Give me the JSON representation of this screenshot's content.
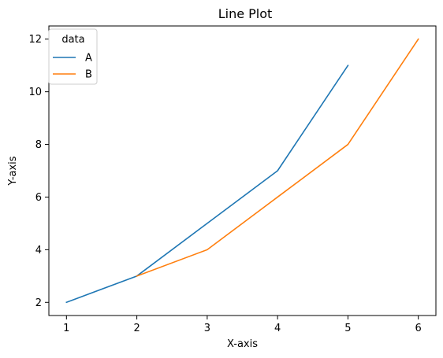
{
  "chart_data": {
    "type": "line",
    "title": "Line Plot",
    "xlabel": "X-axis",
    "ylabel": "Y-axis",
    "xlim": [
      0.75,
      6.25
    ],
    "ylim": [
      1.5,
      12.5
    ],
    "xticks": [
      1,
      2,
      3,
      4,
      5,
      6
    ],
    "yticks": [
      2,
      4,
      6,
      8,
      10,
      12
    ],
    "grid": false,
    "legend": {
      "title": "data",
      "placement": "top-left"
    },
    "series": [
      {
        "name": "A",
        "color": "#1f77b4",
        "x": [
          1,
          2,
          3,
          4,
          5
        ],
        "y": [
          2,
          3,
          5,
          7,
          11
        ]
      },
      {
        "name": "B",
        "color": "#ff7f0e",
        "x": [
          2,
          3,
          4,
          5,
          6
        ],
        "y": [
          3,
          4,
          6,
          8,
          12
        ]
      }
    ]
  }
}
